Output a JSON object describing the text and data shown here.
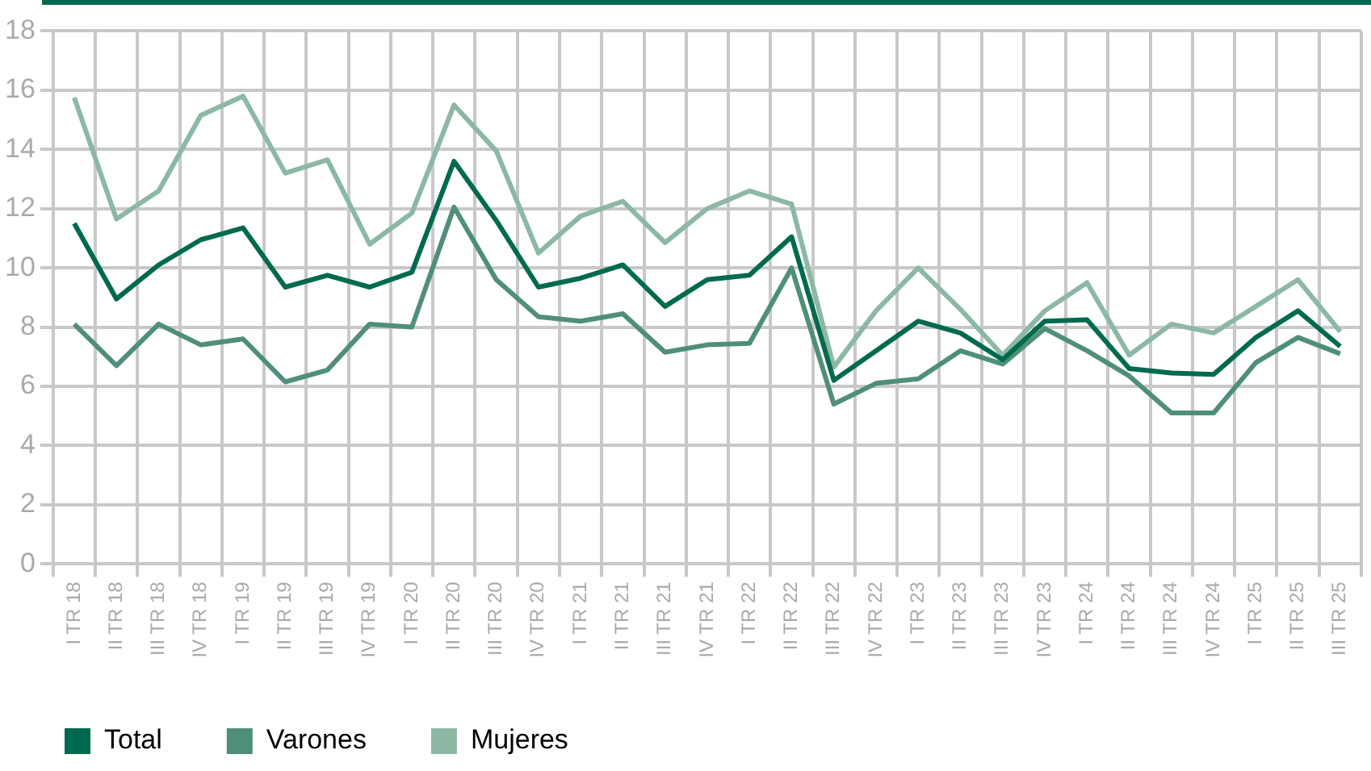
{
  "chart_data": {
    "type": "line",
    "categories": [
      "I TR 18",
      "II TR 18",
      "III TR 18",
      "IV TR 18",
      "I TR 19",
      "II TR 19",
      "III TR 19",
      "IV TR 19",
      "I TR 20",
      "II TR 20",
      "III TR 20",
      "IV TR 20",
      "I TR 21",
      "II TR 21",
      "III TR 21",
      "IV TR 21",
      "I TR 22",
      "II TR 22",
      "III TR 22",
      "IV TR 22",
      "I TR 23",
      "II TR 23",
      "III TR 23",
      "IV TR 23",
      "I TR 24",
      "II TR 24",
      "III TR 24",
      "IV TR 24",
      "I TR 25",
      "II TR 25",
      "III TR 25"
    ],
    "series": [
      {
        "name": "Total",
        "color": "#006a4e",
        "values": [
          11.5,
          8.95,
          10.1,
          10.95,
          11.35,
          9.35,
          9.75,
          9.35,
          9.85,
          13.6,
          11.6,
          9.35,
          9.65,
          10.1,
          8.7,
          9.6,
          9.75,
          11.05,
          6.2,
          7.2,
          8.2,
          7.8,
          6.9,
          8.2,
          8.25,
          6.6,
          6.45,
          6.4,
          7.65,
          8.55,
          7.35
        ]
      },
      {
        "name": "Varones",
        "color": "#4f8f78",
        "values": [
          8.1,
          6.7,
          8.1,
          7.4,
          7.6,
          6.15,
          6.55,
          8.1,
          8.0,
          12.05,
          9.6,
          8.35,
          8.2,
          8.45,
          7.15,
          7.4,
          7.45,
          10.0,
          5.4,
          6.1,
          6.25,
          7.2,
          6.75,
          7.95,
          7.2,
          6.35,
          5.1,
          5.1,
          6.8,
          7.65,
          7.1
        ]
      },
      {
        "name": "Mujeres",
        "color": "#8cb8a4",
        "values": [
          15.75,
          11.65,
          12.6,
          15.15,
          15.8,
          13.2,
          13.65,
          10.8,
          11.85,
          15.5,
          13.95,
          10.5,
          11.75,
          12.25,
          10.85,
          12.0,
          12.6,
          12.15,
          6.65,
          8.55,
          10.0,
          8.6,
          7.05,
          8.55,
          9.5,
          7.05,
          8.1,
          7.8,
          8.7,
          9.6,
          7.85
        ]
      }
    ],
    "ylim": [
      0,
      18
    ],
    "yticks": [
      0,
      2,
      4,
      6,
      8,
      10,
      12,
      14,
      16,
      18
    ],
    "grid": true,
    "legend": "bottom left",
    "marker": "none",
    "line_style": "solid"
  }
}
